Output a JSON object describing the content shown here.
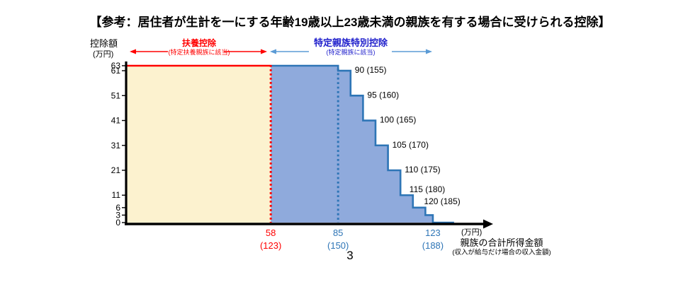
{
  "title": "【参考：居住者が生計を一にする年齢19歳以上23歳未満の親族を有する場合に受けられる控除】",
  "page_number": "3",
  "colors": {
    "red": "#FF0000",
    "header_blue": "#2121CC",
    "arrow_blue": "#5B9BD5",
    "step_line": "#2E75B6",
    "step_fill": "#8FAADC",
    "fuyou_fill": "#FCF2CF",
    "axis": "#000000",
    "text": "#000000"
  },
  "chart_data": {
    "type": "area",
    "title": "居住者が生計を一にする年齢19歳以上23歳未満の親族を有する場合に受けられる控除",
    "ylabel": "控除額",
    "y_unit": "(万円)",
    "xlabel": "親族の合計所得金額",
    "xlabel_note": "(収入が給与だけ場合の収入金額)",
    "x_unit": "(万円)",
    "x_range": [
      0,
      131.5
    ],
    "y_range": [
      0,
      63
    ],
    "y_ticks": [
      63,
      61,
      51,
      41,
      31,
      21,
      11,
      6,
      3,
      0
    ],
    "x_ticks": [
      {
        "income": "58",
        "salary": "(123)",
        "color": "#FF0000"
      },
      {
        "income": "85",
        "salary": "(150)",
        "color": "#2E75B6"
      },
      {
        "income": "123",
        "salary": "(188)",
        "color": "#2E75B6"
      }
    ],
    "regions": {
      "fuyou": {
        "label": "扶養控除",
        "sublabel": "(特定扶養親族に該当)",
        "income_range": [
          0,
          58
        ]
      },
      "tokutei": {
        "label": "特定親族特別控除",
        "sublabel": "(特定親族に該当)",
        "income_range": [
          58,
          123
        ]
      }
    },
    "boundaries": {
      "red_dotted_x": 58,
      "blue_dotted_x": 85
    },
    "steps": [
      {
        "income_from": 0,
        "income_to": 85,
        "deduction": 63,
        "label": ""
      },
      {
        "income_from": 85,
        "income_to": 90,
        "deduction": 61,
        "label": "90 (155)"
      },
      {
        "income_from": 90,
        "income_to": 95,
        "deduction": 51,
        "label": "95 (160)"
      },
      {
        "income_from": 95,
        "income_to": 100,
        "deduction": 41,
        "label": "100 (165)"
      },
      {
        "income_from": 100,
        "income_to": 105,
        "deduction": 31,
        "label": "105 (170)"
      },
      {
        "income_from": 105,
        "income_to": 110,
        "deduction": 21,
        "label": "110 (175)"
      },
      {
        "income_from": 110,
        "income_to": 115,
        "deduction": 11,
        "label": "115 (180)"
      },
      {
        "income_from": 115,
        "income_to": 120,
        "deduction": 6,
        "label": "120 (185)"
      },
      {
        "income_from": 120,
        "income_to": 123,
        "deduction": 3,
        "label": ""
      },
      {
        "income_from": 123,
        "income_to": 131.5,
        "deduction": 0,
        "label": ""
      }
    ]
  }
}
